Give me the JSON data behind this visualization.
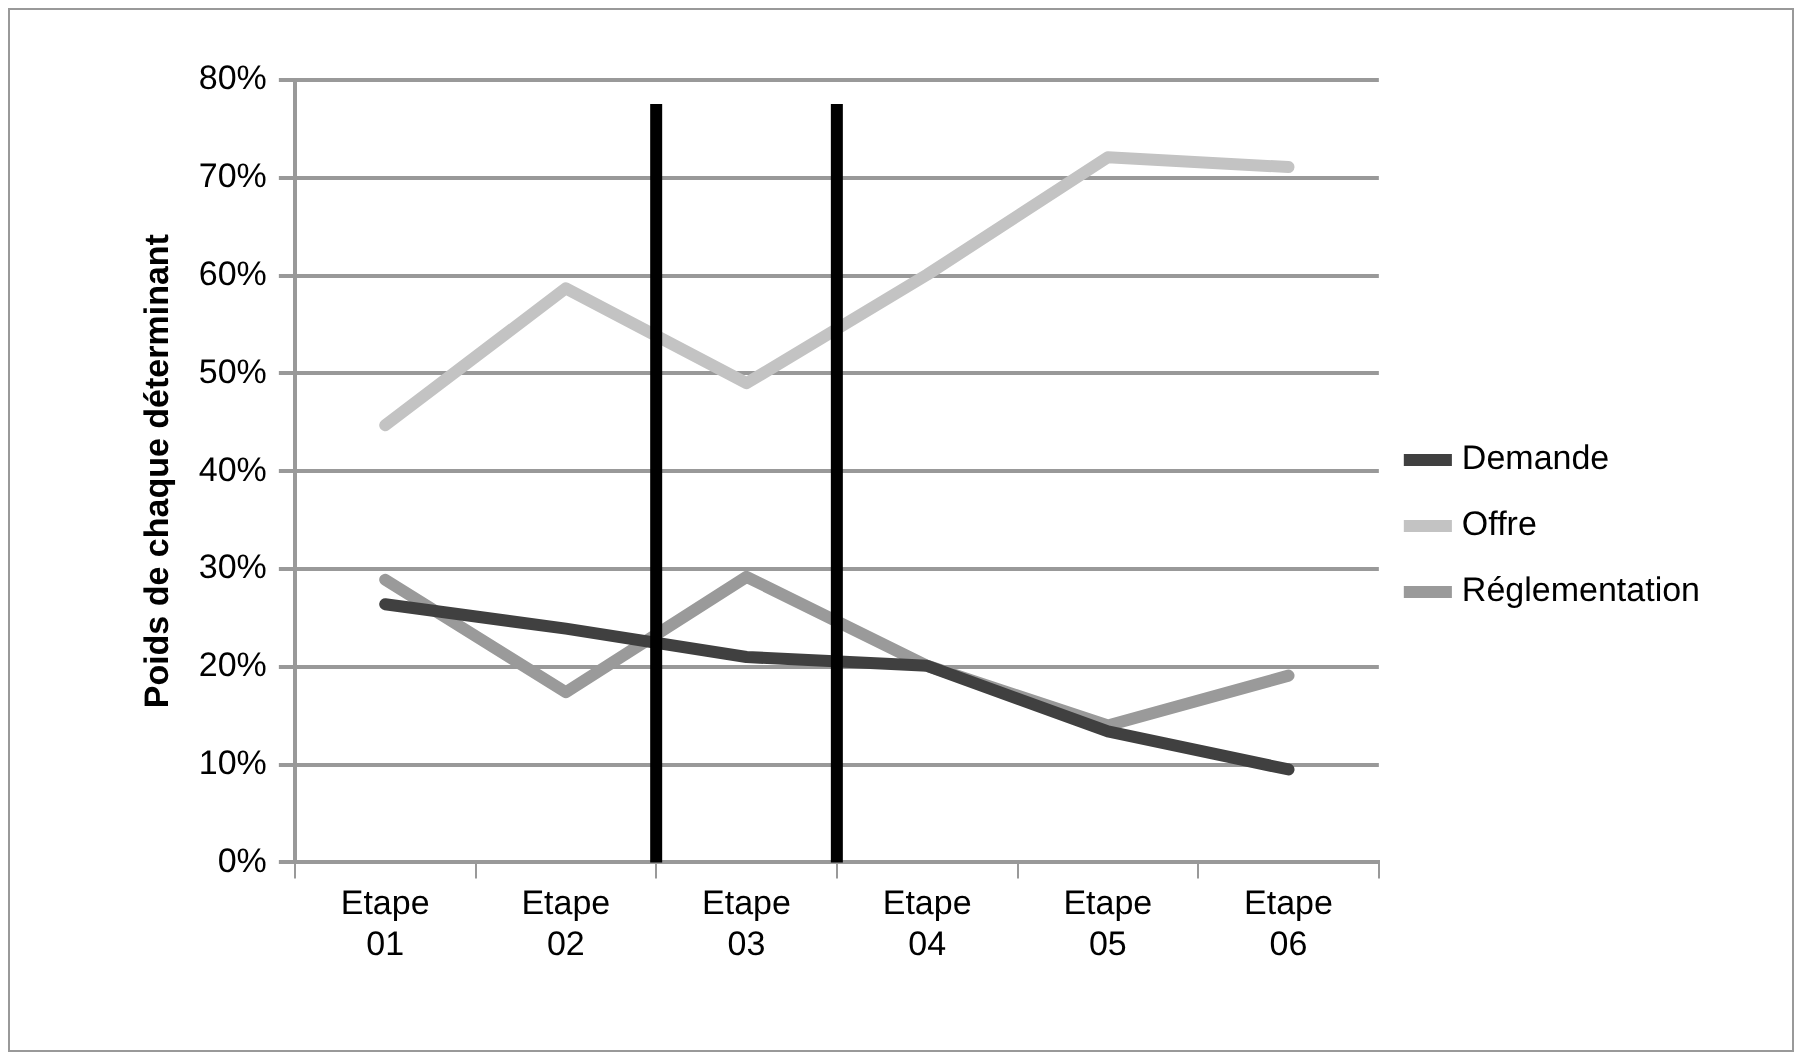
{
  "chart_data": {
    "type": "line",
    "ylabel": "Poids de chaque déterminant",
    "categories": [
      "Etape 01",
      "Etape 02",
      "Etape 03",
      "Etape 04",
      "Etape 05",
      "Etape 06"
    ],
    "series": [
      {
        "name": "Demande",
        "color": "#404040",
        "values": [
          26.4,
          23.9,
          21.0,
          20.1,
          13.4,
          9.5
        ]
      },
      {
        "name": "Offre",
        "color": "#c3c3c3",
        "values": [
          44.7,
          58.7,
          49.0,
          60.1,
          72.1,
          71.1
        ]
      },
      {
        "name": "Réglementation",
        "color": "#9a9a9a",
        "values": [
          28.9,
          17.4,
          29.2,
          20.1,
          14.0,
          19.1
        ]
      }
    ],
    "ylim": [
      0,
      80
    ],
    "yticks": [
      {
        "value": 0,
        "label": "0%"
      },
      {
        "value": 10,
        "label": "10%"
      },
      {
        "value": 20,
        "label": "20%"
      },
      {
        "value": 30,
        "label": "30%"
      },
      {
        "value": 40,
        "label": "40%"
      },
      {
        "value": 50,
        "label": "50%"
      },
      {
        "value": 60,
        "label": "60%"
      },
      {
        "value": 70,
        "label": "70%"
      },
      {
        "value": 80,
        "label": "80%"
      }
    ],
    "grid": "y",
    "legend": "right",
    "marker": "none",
    "line_style": "solid"
  }
}
